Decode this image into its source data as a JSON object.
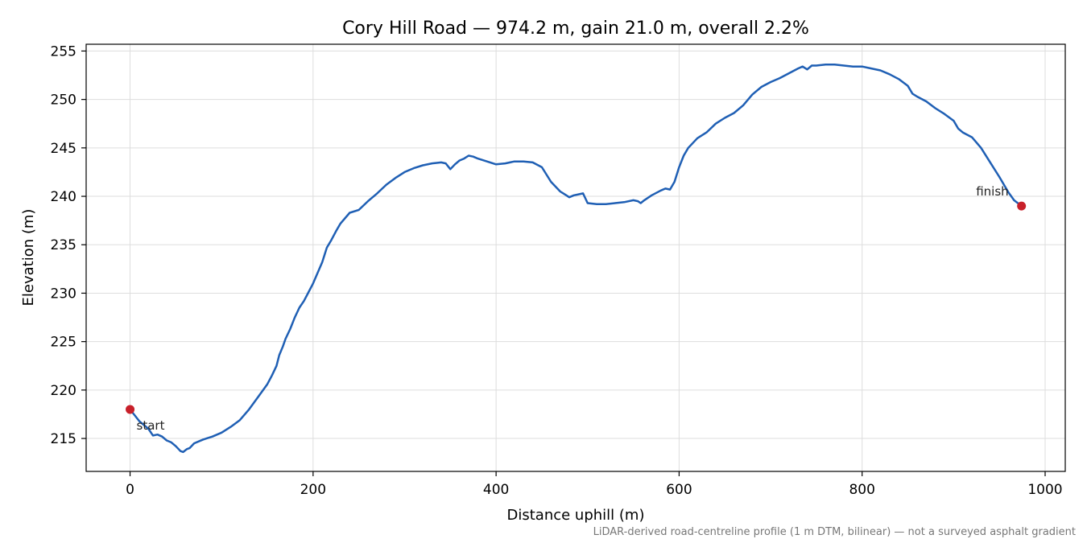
{
  "chart_data": {
    "type": "line",
    "title": "Cory Hill Road — 974.2 m, gain 21.0 m, overall 2.2%",
    "xlabel": "Distance uphill (m)",
    "ylabel": "Elevation (m)",
    "xlim": [
      -48,
      1022
    ],
    "ylim": [
      211.6,
      255.7
    ],
    "xticks": [
      0,
      200,
      400,
      600,
      800,
      1000
    ],
    "yticks": [
      215,
      220,
      225,
      230,
      235,
      240,
      245,
      250,
      255
    ],
    "grid": true,
    "colors": {
      "line": "#1f5fb4",
      "marker": "#c8202a",
      "grid": "#dddddd"
    },
    "series": [
      {
        "x": [
          0,
          10,
          20,
          25,
          30,
          35,
          40,
          45,
          50,
          55,
          58,
          62,
          65,
          70,
          75,
          80,
          90,
          100,
          110,
          120,
          130,
          140,
          150,
          155,
          160,
          163,
          167,
          170,
          175,
          180,
          185,
          190,
          200,
          210,
          215,
          220,
          225,
          230,
          240,
          250,
          260,
          270,
          280,
          290,
          300,
          310,
          320,
          330,
          340,
          345,
          350,
          355,
          360,
          365,
          370,
          375,
          380,
          390,
          400,
          410,
          420,
          430,
          440,
          450,
          460,
          470,
          475,
          480,
          485,
          490,
          495,
          500,
          510,
          520,
          530,
          540,
          550,
          555,
          558,
          562,
          570,
          580,
          585,
          590,
          595,
          600,
          605,
          610,
          620,
          630,
          640,
          650,
          660,
          670,
          680,
          690,
          700,
          710,
          720,
          730,
          735,
          740,
          745,
          750,
          760,
          770,
          780,
          790,
          800,
          810,
          820,
          830,
          840,
          850,
          855,
          860,
          870,
          880,
          890,
          900,
          905,
          910,
          920,
          930,
          940,
          950,
          960,
          966,
          974.2
        ],
        "y": [
          218.0,
          216.8,
          216.0,
          215.3,
          215.4,
          215.2,
          214.8,
          214.6,
          214.2,
          213.7,
          213.6,
          213.9,
          214.0,
          214.5,
          214.7,
          214.9,
          215.2,
          215.6,
          216.2,
          216.9,
          218.0,
          219.3,
          220.6,
          221.5,
          222.5,
          223.6,
          224.5,
          225.3,
          226.3,
          227.5,
          228.5,
          229.2,
          231.0,
          233.2,
          234.7,
          235.5,
          236.4,
          237.2,
          238.3,
          238.6,
          239.5,
          240.3,
          241.2,
          241.9,
          242.5,
          242.9,
          243.2,
          243.4,
          243.5,
          243.4,
          242.8,
          243.3,
          243.7,
          243.9,
          244.2,
          244.1,
          243.9,
          243.6,
          243.3,
          243.4,
          243.6,
          243.6,
          243.5,
          243.0,
          241.5,
          240.5,
          240.2,
          239.9,
          240.1,
          240.2,
          240.3,
          239.3,
          239.2,
          239.2,
          239.3,
          239.4,
          239.6,
          239.5,
          239.3,
          239.6,
          240.1,
          240.6,
          240.8,
          240.7,
          241.5,
          243.0,
          244.2,
          245.0,
          246.0,
          246.6,
          247.5,
          248.1,
          248.6,
          249.4,
          250.5,
          251.3,
          251.8,
          252.2,
          252.7,
          253.2,
          253.4,
          253.1,
          253.5,
          253.5,
          253.6,
          253.6,
          253.5,
          253.4,
          253.4,
          253.2,
          253.0,
          252.6,
          252.1,
          251.4,
          250.6,
          250.3,
          249.8,
          249.1,
          248.5,
          247.8,
          247.0,
          246.6,
          246.1,
          245.0,
          243.5,
          242.0,
          240.4,
          239.6,
          239.0
        ]
      }
    ],
    "markers": [
      {
        "x": 0,
        "y": 218.0,
        "label": "start"
      },
      {
        "x": 974.2,
        "y": 239.0,
        "label": "finish"
      }
    ],
    "footnote": "LiDAR-derived road-centreline profile (1 m DTM, bilinear) — not a surveyed asphalt gradient"
  }
}
